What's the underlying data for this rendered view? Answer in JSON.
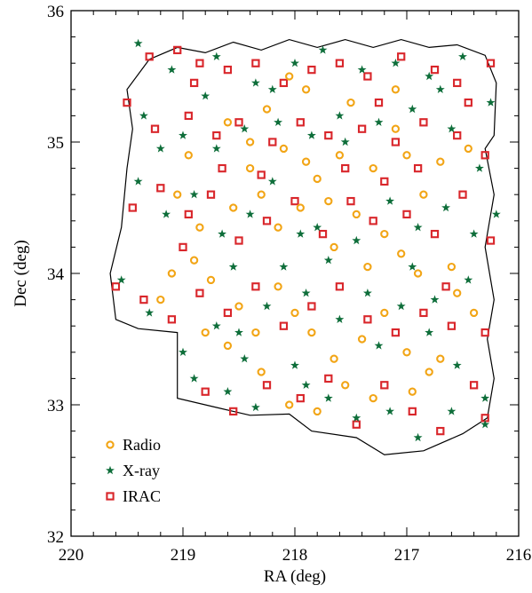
{
  "chart_data": {
    "type": "scatter",
    "title": "",
    "xlabel": "RA (deg)",
    "ylabel": "Dec (deg)",
    "xlim": [
      220,
      216
    ],
    "ylim": [
      32,
      36
    ],
    "x_ticks": [
      "220",
      "219",
      "218",
      "217",
      "216"
    ],
    "y_ticks": [
      "32",
      "33",
      "34",
      "35",
      "36"
    ],
    "x_tick_values": [
      220,
      219,
      218,
      217,
      216
    ],
    "y_tick_values": [
      32,
      33,
      34,
      35,
      36
    ],
    "grid": false,
    "legend_position": "bottom-left",
    "survey_boundary": [
      [
        219.3,
        35.63
      ],
      [
        219.05,
        35.72
      ],
      [
        218.8,
        35.68
      ],
      [
        218.55,
        35.76
      ],
      [
        218.3,
        35.7
      ],
      [
        218.05,
        35.78
      ],
      [
        217.8,
        35.72
      ],
      [
        217.55,
        35.78
      ],
      [
        217.3,
        35.72
      ],
      [
        217.05,
        35.78
      ],
      [
        216.8,
        35.72
      ],
      [
        216.55,
        35.74
      ],
      [
        216.3,
        35.66
      ],
      [
        216.2,
        35.45
      ],
      [
        216.22,
        35.05
      ],
      [
        216.3,
        34.95
      ],
      [
        216.22,
        34.6
      ],
      [
        216.3,
        34.2
      ],
      [
        216.22,
        33.8
      ],
      [
        216.28,
        33.5
      ],
      [
        216.22,
        33.2
      ],
      [
        216.28,
        32.9
      ],
      [
        216.5,
        32.78
      ],
      [
        216.85,
        32.65
      ],
      [
        217.2,
        32.62
      ],
      [
        217.45,
        32.75
      ],
      [
        217.85,
        32.8
      ],
      [
        218.05,
        32.93
      ],
      [
        218.4,
        32.92
      ],
      [
        218.7,
        32.98
      ],
      [
        219.05,
        33.05
      ],
      [
        219.05,
        33.55
      ],
      [
        219.4,
        33.58
      ],
      [
        219.6,
        33.65
      ],
      [
        219.65,
        34.0
      ],
      [
        219.55,
        34.35
      ],
      [
        219.5,
        34.8
      ],
      [
        219.45,
        35.1
      ],
      [
        219.5,
        35.4
      ],
      [
        219.3,
        35.63
      ]
    ],
    "series": [
      {
        "name": "Radio",
        "marker": "circle",
        "color": "#f2a516",
        "points": [
          [
            218.05,
            35.5
          ],
          [
            217.9,
            35.4
          ],
          [
            218.25,
            35.25
          ],
          [
            217.5,
            35.3
          ],
          [
            217.1,
            35.4
          ],
          [
            218.6,
            35.15
          ],
          [
            218.4,
            35.0
          ],
          [
            218.1,
            34.95
          ],
          [
            217.9,
            34.85
          ],
          [
            217.8,
            34.72
          ],
          [
            217.6,
            34.9
          ],
          [
            217.3,
            34.8
          ],
          [
            217.0,
            34.9
          ],
          [
            216.7,
            34.85
          ],
          [
            216.45,
            34.95
          ],
          [
            218.95,
            34.9
          ],
          [
            219.05,
            34.6
          ],
          [
            218.85,
            34.35
          ],
          [
            218.55,
            34.5
          ],
          [
            218.3,
            34.6
          ],
          [
            218.15,
            34.35
          ],
          [
            217.95,
            34.5
          ],
          [
            217.7,
            34.55
          ],
          [
            217.45,
            34.45
          ],
          [
            217.2,
            34.3
          ],
          [
            217.05,
            34.15
          ],
          [
            216.9,
            34.0
          ],
          [
            216.6,
            34.05
          ],
          [
            216.4,
            33.7
          ],
          [
            218.75,
            33.95
          ],
          [
            218.5,
            33.75
          ],
          [
            218.35,
            33.55
          ],
          [
            218.15,
            33.9
          ],
          [
            218.0,
            33.7
          ],
          [
            217.85,
            33.55
          ],
          [
            217.65,
            33.35
          ],
          [
            217.4,
            33.5
          ],
          [
            217.2,
            33.7
          ],
          [
            217.0,
            33.4
          ],
          [
            216.8,
            33.25
          ],
          [
            218.8,
            33.55
          ],
          [
            218.6,
            33.45
          ],
          [
            218.3,
            33.25
          ],
          [
            218.05,
            33.0
          ],
          [
            217.8,
            32.95
          ],
          [
            217.55,
            33.15
          ],
          [
            217.3,
            33.05
          ],
          [
            216.95,
            33.1
          ],
          [
            216.7,
            33.35
          ],
          [
            219.2,
            33.8
          ],
          [
            219.1,
            34.0
          ],
          [
            218.9,
            34.1
          ],
          [
            217.35,
            34.05
          ],
          [
            217.1,
            35.1
          ],
          [
            216.85,
            34.6
          ],
          [
            218.4,
            34.8
          ],
          [
            217.65,
            34.2
          ],
          [
            216.55,
            33.85
          ]
        ]
      },
      {
        "name": "X-ray",
        "marker": "star",
        "color": "#0e6e3a",
        "points": [
          [
            219.4,
            35.75
          ],
          [
            219.1,
            35.55
          ],
          [
            218.7,
            35.65
          ],
          [
            218.35,
            35.45
          ],
          [
            218.0,
            35.6
          ],
          [
            217.75,
            35.7
          ],
          [
            217.4,
            35.55
          ],
          [
            217.1,
            35.6
          ],
          [
            216.8,
            35.5
          ],
          [
            216.5,
            35.65
          ],
          [
            216.25,
            35.3
          ],
          [
            219.35,
            35.2
          ],
          [
            219.0,
            35.05
          ],
          [
            218.7,
            34.95
          ],
          [
            218.45,
            35.1
          ],
          [
            218.15,
            35.15
          ],
          [
            217.85,
            35.05
          ],
          [
            217.55,
            35.0
          ],
          [
            217.25,
            35.15
          ],
          [
            216.95,
            35.25
          ],
          [
            216.6,
            35.1
          ],
          [
            216.35,
            34.8
          ],
          [
            219.4,
            34.7
          ],
          [
            219.15,
            34.45
          ],
          [
            218.9,
            34.6
          ],
          [
            218.65,
            34.3
          ],
          [
            218.4,
            34.45
          ],
          [
            218.2,
            34.7
          ],
          [
            217.95,
            34.3
          ],
          [
            217.7,
            34.1
          ],
          [
            217.45,
            34.25
          ],
          [
            217.15,
            34.55
          ],
          [
            216.9,
            34.35
          ],
          [
            216.65,
            34.5
          ],
          [
            216.4,
            34.3
          ],
          [
            216.2,
            34.45
          ],
          [
            219.55,
            33.95
          ],
          [
            219.3,
            33.7
          ],
          [
            219.0,
            33.4
          ],
          [
            218.7,
            33.6
          ],
          [
            218.45,
            33.35
          ],
          [
            218.25,
            33.75
          ],
          [
            217.9,
            33.85
          ],
          [
            217.6,
            33.65
          ],
          [
            217.35,
            33.85
          ],
          [
            217.05,
            33.75
          ],
          [
            216.8,
            33.55
          ],
          [
            216.55,
            33.3
          ],
          [
            216.3,
            33.05
          ],
          [
            218.9,
            33.2
          ],
          [
            218.6,
            33.1
          ],
          [
            218.35,
            32.98
          ],
          [
            218.0,
            33.3
          ],
          [
            217.7,
            33.05
          ],
          [
            217.45,
            32.9
          ],
          [
            217.15,
            32.95
          ],
          [
            216.9,
            32.75
          ],
          [
            216.6,
            32.95
          ],
          [
            216.3,
            32.85
          ],
          [
            219.2,
            34.95
          ],
          [
            218.55,
            34.05
          ],
          [
            218.1,
            34.05
          ],
          [
            217.8,
            34.35
          ],
          [
            217.25,
            33.45
          ],
          [
            216.95,
            34.05
          ],
          [
            216.45,
            33.95
          ],
          [
            218.8,
            35.35
          ],
          [
            218.2,
            35.4
          ],
          [
            217.6,
            35.2
          ],
          [
            216.7,
            35.4
          ],
          [
            217.9,
            33.15
          ],
          [
            218.5,
            33.55
          ],
          [
            216.75,
            33.8
          ]
        ]
      },
      {
        "name": "IRAC",
        "marker": "square",
        "color": "#d9262b",
        "points": [
          [
            219.3,
            35.65
          ],
          [
            219.05,
            35.7
          ],
          [
            218.85,
            35.6
          ],
          [
            218.6,
            35.55
          ],
          [
            218.35,
            35.6
          ],
          [
            218.1,
            35.45
          ],
          [
            217.85,
            35.55
          ],
          [
            217.6,
            35.6
          ],
          [
            217.35,
            35.5
          ],
          [
            217.05,
            35.65
          ],
          [
            216.75,
            35.55
          ],
          [
            216.55,
            35.45
          ],
          [
            216.25,
            35.6
          ],
          [
            219.5,
            35.3
          ],
          [
            219.25,
            35.1
          ],
          [
            218.95,
            35.2
          ],
          [
            218.7,
            35.05
          ],
          [
            218.5,
            35.15
          ],
          [
            218.2,
            35.0
          ],
          [
            217.95,
            35.15
          ],
          [
            217.7,
            35.05
          ],
          [
            217.4,
            35.1
          ],
          [
            217.1,
            35.0
          ],
          [
            216.85,
            35.15
          ],
          [
            216.55,
            35.05
          ],
          [
            216.3,
            34.9
          ],
          [
            219.45,
            34.5
          ],
          [
            219.2,
            34.65
          ],
          [
            218.95,
            34.45
          ],
          [
            218.75,
            34.6
          ],
          [
            218.5,
            34.25
          ],
          [
            218.25,
            34.4
          ],
          [
            218.0,
            34.55
          ],
          [
            217.75,
            34.3
          ],
          [
            217.5,
            34.55
          ],
          [
            217.3,
            34.4
          ],
          [
            217.0,
            34.45
          ],
          [
            216.75,
            34.3
          ],
          [
            216.5,
            34.6
          ],
          [
            216.25,
            34.25
          ],
          [
            219.6,
            33.9
          ],
          [
            219.35,
            33.8
          ],
          [
            219.1,
            33.65
          ],
          [
            218.85,
            33.85
          ],
          [
            218.6,
            33.7
          ],
          [
            218.35,
            33.9
          ],
          [
            218.1,
            33.6
          ],
          [
            217.85,
            33.75
          ],
          [
            217.6,
            33.9
          ],
          [
            217.35,
            33.65
          ],
          [
            217.1,
            33.55
          ],
          [
            216.85,
            33.7
          ],
          [
            216.6,
            33.6
          ],
          [
            216.3,
            33.55
          ],
          [
            218.8,
            33.1
          ],
          [
            218.55,
            32.95
          ],
          [
            218.25,
            33.15
          ],
          [
            217.95,
            33.05
          ],
          [
            217.7,
            33.2
          ],
          [
            217.45,
            32.85
          ],
          [
            217.2,
            33.15
          ],
          [
            216.95,
            32.95
          ],
          [
            216.7,
            32.8
          ],
          [
            216.4,
            33.15
          ],
          [
            216.3,
            32.9
          ],
          [
            219.0,
            34.2
          ],
          [
            218.3,
            34.75
          ],
          [
            217.55,
            34.8
          ],
          [
            216.9,
            34.8
          ],
          [
            218.65,
            34.8
          ],
          [
            217.2,
            34.7
          ],
          [
            216.65,
            33.9
          ],
          [
            218.9,
            35.45
          ],
          [
            217.25,
            35.3
          ],
          [
            216.45,
            35.3
          ]
        ]
      }
    ]
  }
}
